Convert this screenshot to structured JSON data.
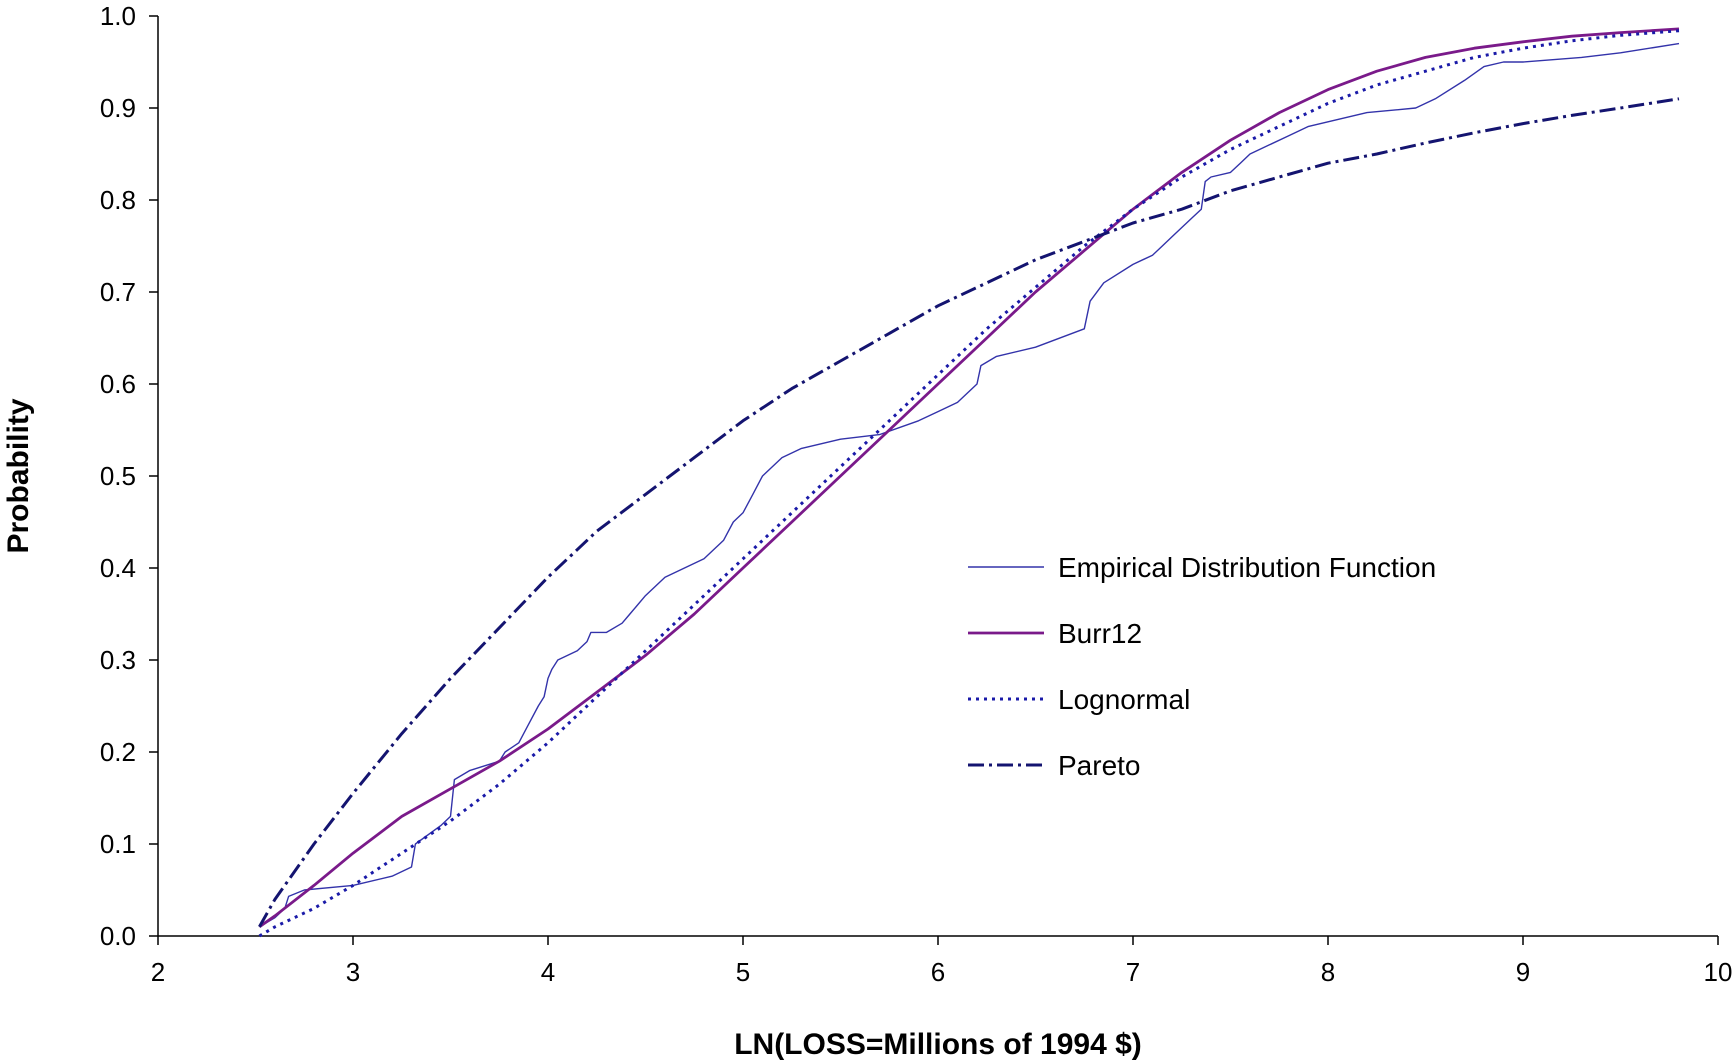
{
  "chart_data": {
    "type": "line",
    "title": "",
    "xlabel": "LN(LOSS=Millions of 1994 $)",
    "ylabel": "Probability",
    "xlim": [
      2,
      10
    ],
    "ylim": [
      0,
      1
    ],
    "x_ticks": [
      2,
      3,
      4,
      5,
      6,
      7,
      8,
      9,
      10
    ],
    "x_tick_labels": [
      "2",
      "3",
      "4",
      "5",
      "6",
      "7",
      "8",
      "9",
      "10"
    ],
    "y_ticks": [
      0,
      0.1,
      0.2,
      0.3,
      0.4,
      0.5,
      0.6,
      0.7,
      0.8,
      0.9,
      1.0
    ],
    "y_tick_labels": [
      "0.0",
      "0.1",
      "0.2",
      "0.3",
      "0.4",
      "0.5",
      "0.6",
      "0.7",
      "0.8",
      "0.9",
      "1.0"
    ],
    "grid": false,
    "legend_position": "center-right",
    "series": [
      {
        "name": "Empirical Distribution Function",
        "style": "thin-solid",
        "color": "#3333aa",
        "x": [
          2.52,
          2.6,
          2.65,
          2.67,
          2.75,
          3.0,
          3.2,
          3.3,
          3.32,
          3.45,
          3.5,
          3.52,
          3.6,
          3.75,
          3.78,
          3.85,
          3.9,
          3.95,
          3.98,
          4.0,
          4.02,
          4.05,
          4.15,
          4.2,
          4.22,
          4.3,
          4.38,
          4.42,
          4.5,
          4.6,
          4.8,
          4.9,
          4.95,
          5.0,
          5.05,
          5.1,
          5.2,
          5.3,
          5.5,
          5.7,
          5.9,
          6.0,
          6.1,
          6.2,
          6.22,
          6.3,
          6.5,
          6.75,
          6.78,
          6.85,
          7.0,
          7.1,
          7.15,
          7.2,
          7.3,
          7.35,
          7.37,
          7.4,
          7.5,
          7.55,
          7.6,
          7.7,
          7.8,
          7.9,
          8.0,
          8.2,
          8.45,
          8.55,
          8.7,
          8.8,
          8.9,
          9.0,
          9.3,
          9.5,
          9.8
        ],
        "y": [
          0.01,
          0.02,
          0.03,
          0.043,
          0.05,
          0.055,
          0.065,
          0.075,
          0.1,
          0.12,
          0.13,
          0.17,
          0.18,
          0.19,
          0.2,
          0.21,
          0.23,
          0.25,
          0.26,
          0.28,
          0.29,
          0.3,
          0.31,
          0.32,
          0.33,
          0.33,
          0.34,
          0.35,
          0.37,
          0.39,
          0.41,
          0.43,
          0.45,
          0.46,
          0.48,
          0.5,
          0.52,
          0.53,
          0.54,
          0.545,
          0.56,
          0.57,
          0.58,
          0.6,
          0.62,
          0.63,
          0.64,
          0.66,
          0.69,
          0.71,
          0.73,
          0.74,
          0.75,
          0.76,
          0.78,
          0.79,
          0.82,
          0.825,
          0.83,
          0.84,
          0.85,
          0.86,
          0.87,
          0.88,
          0.885,
          0.895,
          0.9,
          0.91,
          0.93,
          0.945,
          0.95,
          0.95,
          0.955,
          0.96,
          0.97
        ]
      },
      {
        "name": "Burr12",
        "style": "solid",
        "color": "#7a1a8a",
        "x": [
          2.52,
          2.6,
          2.8,
          3.0,
          3.25,
          3.5,
          3.75,
          4.0,
          4.25,
          4.5,
          4.75,
          5.0,
          5.25,
          5.5,
          5.75,
          6.0,
          6.25,
          6.5,
          6.75,
          7.0,
          7.25,
          7.5,
          7.75,
          8.0,
          8.25,
          8.5,
          8.75,
          9.0,
          9.25,
          9.5,
          9.8
        ],
        "y": [
          0.01,
          0.022,
          0.055,
          0.09,
          0.13,
          0.16,
          0.19,
          0.225,
          0.265,
          0.305,
          0.35,
          0.4,
          0.45,
          0.5,
          0.55,
          0.6,
          0.65,
          0.7,
          0.745,
          0.79,
          0.83,
          0.865,
          0.895,
          0.92,
          0.94,
          0.955,
          0.965,
          0.972,
          0.978,
          0.982,
          0.986
        ]
      },
      {
        "name": "Lognormal",
        "style": "dotted",
        "color": "#1a1aa8",
        "x": [
          2.52,
          2.6,
          2.8,
          3.0,
          3.25,
          3.5,
          3.75,
          4.0,
          4.25,
          4.5,
          4.75,
          5.0,
          5.25,
          5.5,
          5.75,
          6.0,
          6.25,
          6.5,
          6.75,
          7.0,
          7.25,
          7.5,
          7.75,
          8.0,
          8.25,
          8.5,
          8.75,
          9.0,
          9.25,
          9.5,
          9.8
        ],
        "y": [
          0.0,
          0.01,
          0.03,
          0.055,
          0.09,
          0.125,
          0.165,
          0.21,
          0.26,
          0.31,
          0.36,
          0.41,
          0.46,
          0.51,
          0.56,
          0.61,
          0.66,
          0.705,
          0.75,
          0.79,
          0.825,
          0.855,
          0.88,
          0.905,
          0.925,
          0.94,
          0.955,
          0.965,
          0.973,
          0.979,
          0.984
        ]
      },
      {
        "name": "Pareto",
        "style": "dash-dot",
        "color": "#141470",
        "x": [
          2.52,
          2.6,
          2.8,
          3.0,
          3.25,
          3.5,
          3.75,
          4.0,
          4.25,
          4.5,
          4.75,
          5.0,
          5.25,
          5.5,
          5.75,
          6.0,
          6.25,
          6.5,
          6.75,
          7.0,
          7.25,
          7.5,
          7.75,
          8.0,
          8.25,
          8.5,
          8.75,
          9.0,
          9.25,
          9.5,
          9.8
        ],
        "y": [
          0.01,
          0.04,
          0.1,
          0.155,
          0.22,
          0.28,
          0.335,
          0.39,
          0.44,
          0.48,
          0.52,
          0.56,
          0.595,
          0.625,
          0.655,
          0.685,
          0.71,
          0.735,
          0.755,
          0.775,
          0.79,
          0.81,
          0.825,
          0.84,
          0.85,
          0.862,
          0.873,
          0.883,
          0.892,
          0.9,
          0.91
        ]
      }
    ]
  }
}
